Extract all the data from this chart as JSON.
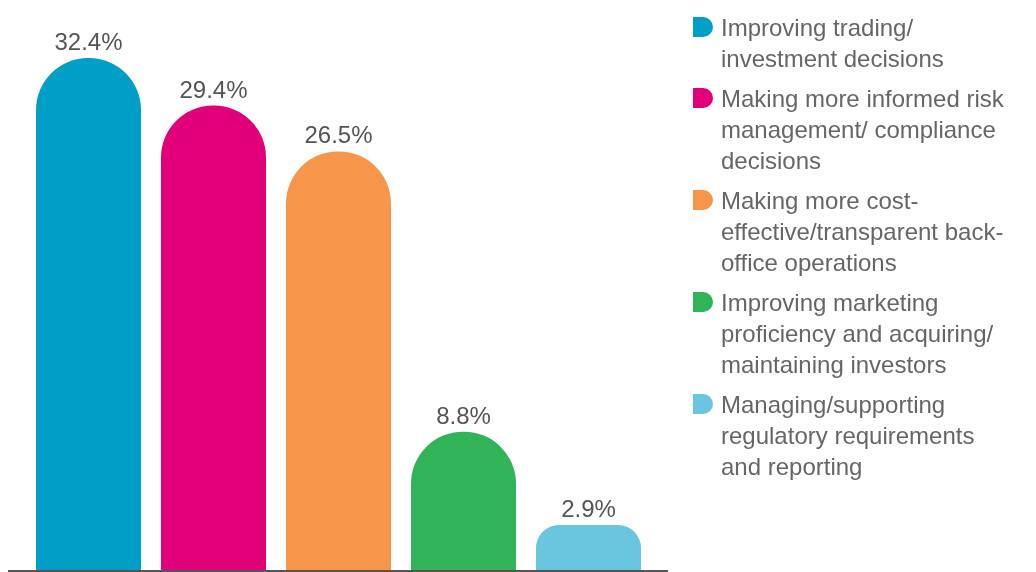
{
  "chart_data": {
    "type": "bar",
    "categories": [
      null
    ],
    "legend": "right",
    "series": [
      {
        "name": "Improving trading/ investment decisions",
        "color": "#009fc7",
        "values": [
          32.4
        ],
        "value_labels": [
          "32.4%"
        ]
      },
      {
        "name": "Making more informed risk management/ compliance decisions",
        "color": "#e2007a",
        "values": [
          29.4
        ],
        "value_labels": [
          "29.4%"
        ]
      },
      {
        "name": "Making more cost-effective/transparent back-office operations",
        "color": "#f7964a",
        "values": [
          26.5
        ],
        "value_labels": [
          "26.5%"
        ]
      },
      {
        "name": "Improving marketing proficiency and acquiring/ maintaining investors",
        "color": "#30b457",
        "values": [
          8.8
        ],
        "value_labels": [
          "8.8%"
        ]
      },
      {
        "name": "Managing/supporting regulatory requirements and reporting",
        "color": "#6ac6de",
        "values": [
          2.9
        ],
        "value_labels": [
          "2.9%"
        ]
      }
    ]
  }
}
